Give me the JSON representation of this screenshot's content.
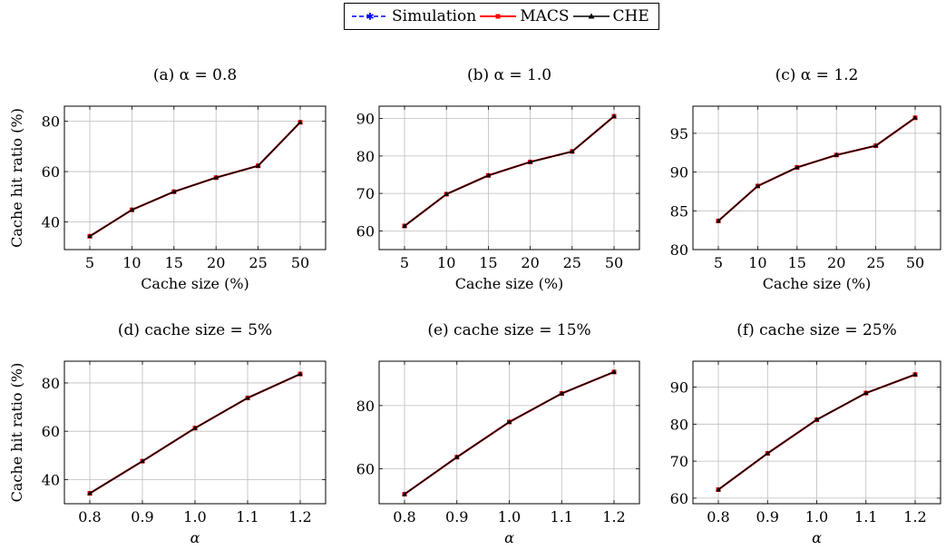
{
  "legend": [
    {
      "name": "Simulation",
      "color": "#0000ff",
      "dash": "5,3",
      "marker": "star"
    },
    {
      "name": "MACS",
      "color": "#ff0000",
      "dash": "",
      "marker": "square"
    },
    {
      "name": "CHE",
      "color": "#000000",
      "dash": "",
      "marker": "triangle"
    }
  ],
  "chart_data": [
    {
      "type": "line",
      "title": "(a) α = 0.8",
      "xlabel": "Cache size (%)",
      "ylabel": "Cache hit ratio (%)",
      "categories": [
        "5",
        "10",
        "15",
        "20",
        "25",
        "50"
      ],
      "ylim": [
        29,
        86
      ],
      "yticks": [
        40,
        60,
        80
      ],
      "grid": true,
      "series": [
        {
          "name": "Simulation",
          "values": [
            34.3,
            44.8,
            52.0,
            57.6,
            62.3,
            79.6
          ]
        },
        {
          "name": "MACS",
          "values": [
            34.3,
            44.8,
            52.0,
            57.6,
            62.3,
            79.6
          ]
        },
        {
          "name": "CHE",
          "values": [
            34.3,
            44.8,
            52.0,
            57.6,
            62.3,
            79.6
          ]
        }
      ]
    },
    {
      "type": "line",
      "title": "(b) α = 1.0",
      "xlabel": "Cache size (%)",
      "ylabel": "",
      "categories": [
        "5",
        "10",
        "15",
        "20",
        "25",
        "50"
      ],
      "ylim": [
        55,
        93.3
      ],
      "yticks": [
        60,
        70,
        80,
        90
      ],
      "grid": true,
      "series": [
        {
          "name": "Simulation",
          "values": [
            61.3,
            69.8,
            74.8,
            78.4,
            81.2,
            90.6
          ]
        },
        {
          "name": "MACS",
          "values": [
            61.3,
            69.8,
            74.8,
            78.4,
            81.2,
            90.6
          ]
        },
        {
          "name": "CHE",
          "values": [
            61.3,
            69.8,
            74.8,
            78.4,
            81.2,
            90.6
          ]
        }
      ]
    },
    {
      "type": "line",
      "title": "(c) α = 1.2",
      "xlabel": "Cache size (%)",
      "ylabel": "",
      "categories": [
        "5",
        "10",
        "15",
        "20",
        "25",
        "50"
      ],
      "ylim": [
        80,
        98.5
      ],
      "yticks": [
        80,
        85,
        90,
        95
      ],
      "grid": true,
      "series": [
        {
          "name": "Simulation",
          "values": [
            83.7,
            88.2,
            90.6,
            92.2,
            93.4,
            97.0
          ]
        },
        {
          "name": "MACS",
          "values": [
            83.7,
            88.2,
            90.6,
            92.2,
            93.4,
            97.0
          ]
        },
        {
          "name": "CHE",
          "values": [
            83.7,
            88.2,
            90.6,
            92.2,
            93.4,
            97.0
          ]
        }
      ]
    },
    {
      "type": "line",
      "title": "(d) cache size = 5%",
      "xlabel": "α",
      "ylabel": "Cache hit ratio (%)",
      "categories": [
        "0.8",
        "0.9",
        "1.0",
        "1.1",
        "1.2"
      ],
      "ylim": [
        30,
        89
      ],
      "yticks": [
        40,
        60,
        80
      ],
      "grid": true,
      "series": [
        {
          "name": "Simulation",
          "values": [
            34.3,
            47.6,
            61.3,
            73.8,
            83.7
          ]
        },
        {
          "name": "MACS",
          "values": [
            34.3,
            47.6,
            61.3,
            73.8,
            83.7
          ]
        },
        {
          "name": "CHE",
          "values": [
            34.3,
            47.6,
            61.3,
            73.8,
            83.7
          ]
        }
      ]
    },
    {
      "type": "line",
      "title": "(e) cache size = 15%",
      "xlabel": "α",
      "ylabel": "",
      "categories": [
        "0.8",
        "0.9",
        "1.0",
        "1.1",
        "1.2"
      ],
      "ylim": [
        49,
        94
      ],
      "yticks": [
        60,
        80
      ],
      "grid": true,
      "series": [
        {
          "name": "Simulation",
          "values": [
            52.0,
            63.7,
            74.8,
            83.8,
            90.6
          ]
        },
        {
          "name": "MACS",
          "values": [
            52.0,
            63.7,
            74.8,
            83.8,
            90.6
          ]
        },
        {
          "name": "CHE",
          "values": [
            52.0,
            63.7,
            74.8,
            83.8,
            90.6
          ]
        }
      ]
    },
    {
      "type": "line",
      "title": "(f) cache size = 25%",
      "xlabel": "α",
      "ylabel": "",
      "categories": [
        "0.8",
        "0.9",
        "1.0",
        "1.1",
        "1.2"
      ],
      "ylim": [
        58.5,
        97
      ],
      "yticks": [
        60,
        70,
        80,
        90
      ],
      "grid": true,
      "series": [
        {
          "name": "Simulation",
          "values": [
            62.3,
            72.1,
            81.2,
            88.4,
            93.4
          ]
        },
        {
          "name": "MACS",
          "values": [
            62.3,
            72.1,
            81.2,
            88.4,
            93.4
          ]
        },
        {
          "name": "CHE",
          "values": [
            62.3,
            72.1,
            81.2,
            88.4,
            93.4
          ]
        }
      ]
    }
  ]
}
